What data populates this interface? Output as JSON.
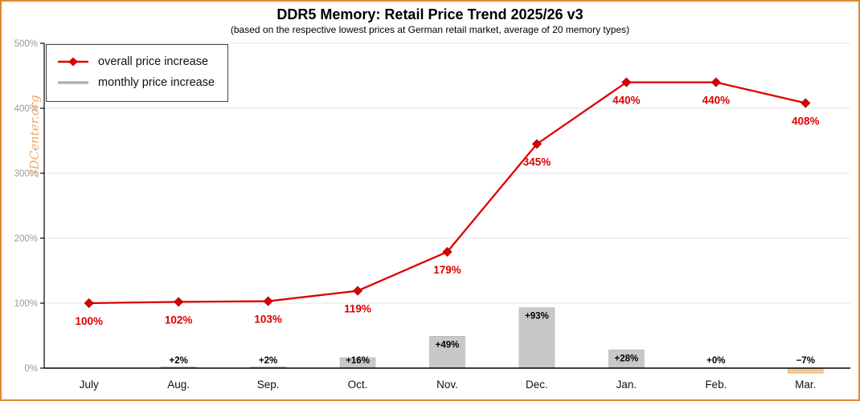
{
  "title": "DDR5 Memory: Retail Price Trend 2025/26 v3",
  "subtitle": "(based on the respective lowest prices at German retail market, average of 20 memory types)",
  "watermark": "3DCenter.org",
  "colors": {
    "border": "#e0892e",
    "line": "#dd0000",
    "marker": "#dd0000",
    "bar": "#c8c8c8",
    "bar_negative": "#f6c694",
    "grid": "#e4e4e4",
    "axis": "#000000",
    "ytick_text": "#999999",
    "xtick_text": "#111111",
    "red_label": "#dd0000",
    "bar_label": "#000000",
    "watermark": "#f0a868"
  },
  "chart_data": {
    "type": "line+bar",
    "categories": [
      "July",
      "Aug.",
      "Sep.",
      "Oct.",
      "Nov.",
      "Dec.",
      "Jan.",
      "Feb.",
      "Mar."
    ],
    "series": [
      {
        "name": "overall price increase",
        "type": "line",
        "values": [
          100,
          102,
          103,
          119,
          179,
          345,
          440,
          440,
          408
        ],
        "labels": [
          "100%",
          "102%",
          "103%",
          "119%",
          "179%",
          "345%",
          "440%",
          "440%",
          "408%"
        ]
      },
      {
        "name": "monthly price increase",
        "type": "bar",
        "values": [
          null,
          2,
          2,
          16,
          49,
          93,
          28,
          0,
          -7
        ],
        "labels": [
          "",
          "+2%",
          "+2%",
          "+16%",
          "+49%",
          "+93%",
          "+28%",
          "+0%",
          "−7%"
        ]
      }
    ],
    "ylim": [
      0,
      500
    ],
    "yticks": [
      "0%",
      "100%",
      "200%",
      "300%",
      "400%",
      "500%"
    ],
    "grid": true,
    "legend_position": "top-left"
  }
}
